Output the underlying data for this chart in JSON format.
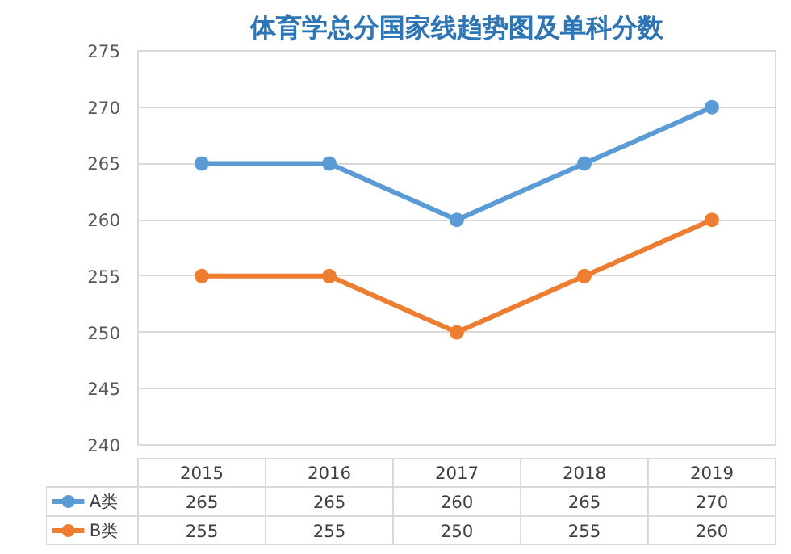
{
  "chart_data": {
    "type": "line",
    "title": "体育学总分国家线趋势图及单科分数",
    "categories": [
      "2015",
      "2016",
      "2017",
      "2018",
      "2019"
    ],
    "series": [
      {
        "name": "A类",
        "color": "#5b9bd5",
        "values": [
          265,
          265,
          260,
          265,
          270
        ]
      },
      {
        "name": "B类",
        "color": "#ed7d31",
        "values": [
          255,
          255,
          250,
          255,
          260
        ]
      }
    ],
    "ylim": [
      240,
      275
    ],
    "yticks": [
      240,
      245,
      250,
      255,
      260,
      265,
      270,
      275
    ],
    "grid": "y",
    "legend": "bottom",
    "marker": "circle",
    "line_style": "solid",
    "data_labels": true
  }
}
